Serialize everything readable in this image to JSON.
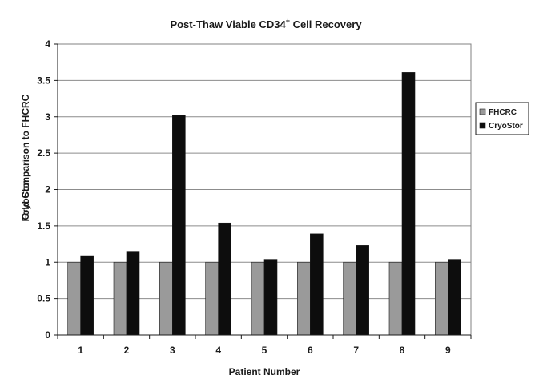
{
  "chart_data": {
    "type": "bar",
    "title": {
      "main": "Post-Thaw Viable CD34",
      "superscript": "+",
      "rest": " Cell Recovery"
    },
    "xlabel": "Patient Number",
    "ylabel": "CryoStor Fold Comparison to FHCRC",
    "ylabel_lines": [
      "CryoStor",
      "Fold Comparison to FHCRC"
    ],
    "categories": [
      "1",
      "2",
      "3",
      "4",
      "5",
      "6",
      "7",
      "8",
      "9"
    ],
    "ylim": [
      0,
      4
    ],
    "yticks": [
      0,
      0.5,
      1,
      1.5,
      2,
      2.5,
      3,
      3.5,
      4
    ],
    "ytick_labels": [
      "0",
      "0.5",
      "1",
      "1.5",
      "2",
      "2.5",
      "3",
      "3.5",
      "4"
    ],
    "grid": true,
    "legend_position": "right",
    "series": [
      {
        "name": "FHCRC",
        "color": "#9a9a9a",
        "values": [
          1,
          1,
          1,
          1,
          1,
          1,
          1,
          1,
          1
        ]
      },
      {
        "name": "CryoStor",
        "color": "#0d0d0d",
        "values": [
          1.09,
          1.15,
          3.02,
          1.54,
          1.04,
          1.39,
          1.23,
          3.61,
          1.04
        ]
      }
    ]
  }
}
